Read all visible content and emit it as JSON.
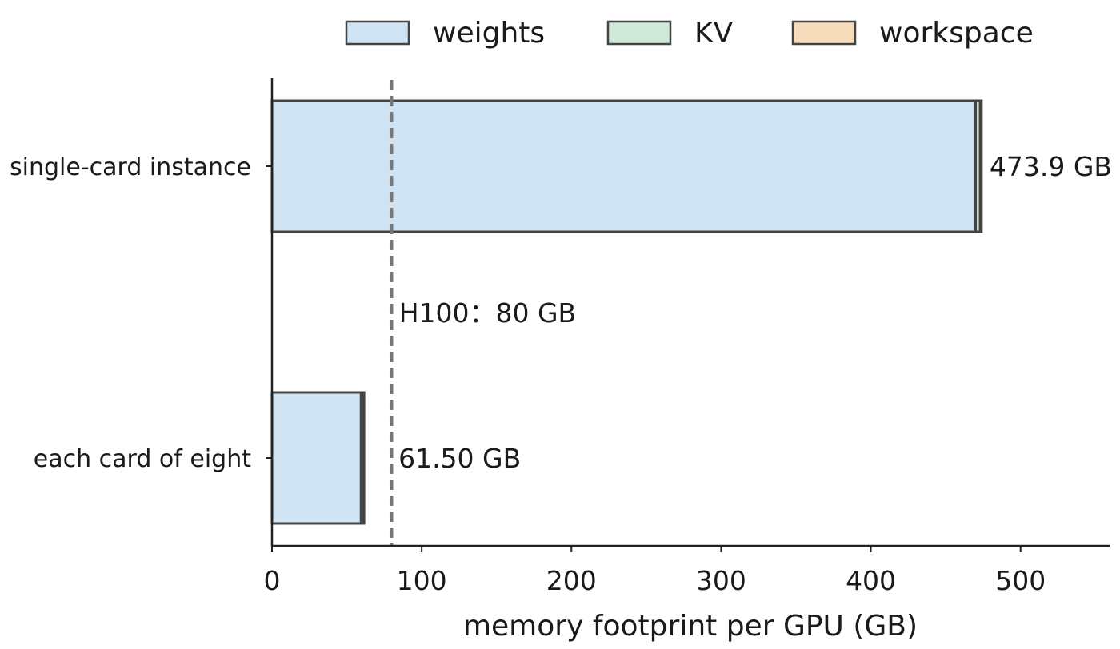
{
  "chart_data": {
    "type": "bar",
    "orientation": "horizontal",
    "stacked": true,
    "categories": [
      "single-card instance",
      "each card of eight"
    ],
    "series": [
      {
        "name": "weights",
        "values": [
          470.0,
          59.5
        ],
        "color": "#cfe3f3"
      },
      {
        "name": "KV",
        "values": [
          3.0,
          1.2
        ],
        "color": "#cfe8d8"
      },
      {
        "name": "workspace",
        "values": [
          0.9,
          0.8
        ],
        "color": "#f7dcbb"
      }
    ],
    "value_labels": [
      "473.9 GB",
      "61.50 GB"
    ],
    "xlabel": "memory footprint per GPU (GB)",
    "ylabel": "",
    "xlim": [
      0,
      560
    ],
    "xticks": [
      0,
      100,
      200,
      300,
      400,
      500
    ],
    "reference_line": {
      "x": 80,
      "label": "H100：80 GB",
      "style": "dashed",
      "color": "#777777"
    },
    "legend_position": "top",
    "grid": false,
    "edge_color": "#444444"
  }
}
